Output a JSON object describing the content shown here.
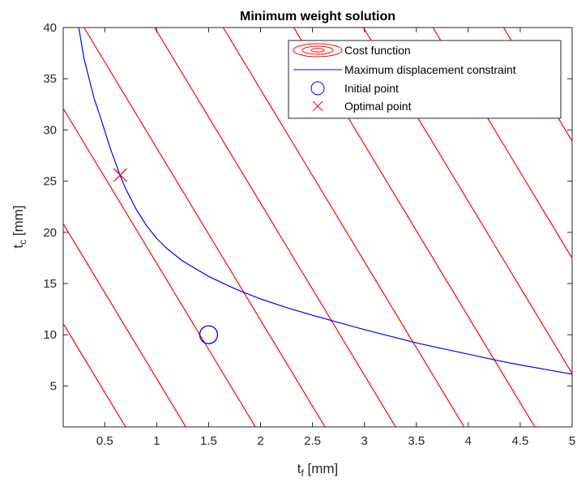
{
  "chart_data": {
    "type": "line",
    "title": "Minimum weight solution",
    "xlabel": {
      "main": "t",
      "sub": "f",
      "unit": " [mm]"
    },
    "ylabel": {
      "main": "t",
      "sub": "c",
      "unit": " [mm]"
    },
    "xlim": [
      0.1,
      5
    ],
    "ylim": [
      1,
      40
    ],
    "xticks": [
      {
        "value": 0.5,
        "label": "0.5"
      },
      {
        "value": 1,
        "label": "1"
      },
      {
        "value": 1.5,
        "label": "1.5"
      },
      {
        "value": 2,
        "label": "2"
      },
      {
        "value": 2.5,
        "label": "2.5"
      },
      {
        "value": 3,
        "label": "3"
      },
      {
        "value": 3.5,
        "label": "3.5"
      },
      {
        "value": 4,
        "label": "4"
      },
      {
        "value": 4.5,
        "label": "4.5"
      },
      {
        "value": 5,
        "label": "5"
      }
    ],
    "yticks": [
      {
        "value": 5,
        "label": "5"
      },
      {
        "value": 10,
        "label": "10"
      },
      {
        "value": 15,
        "label": "15"
      },
      {
        "value": 20,
        "label": "20"
      },
      {
        "value": 25,
        "label": "25"
      },
      {
        "value": 30,
        "label": "30"
      },
      {
        "value": 35,
        "label": "35"
      },
      {
        "value": 40,
        "label": "40"
      }
    ],
    "grid": false,
    "legend_position": "top-right",
    "cost_contours": {
      "name": "Cost function",
      "color": "#ff0000",
      "slope": -16.8,
      "lines": [
        {
          "x_at_y0": 0.76,
          "x_at_y40": -1.62
        },
        {
          "x_at_y0": 1.34,
          "x_at_y40": -1.04
        },
        {
          "x_at_y0": 2.01,
          "x_at_y40": -0.37
        },
        {
          "x_at_y0": 2.68,
          "x_at_y40": 0.3
        },
        {
          "x_at_y0": 3.36,
          "x_at_y40": 0.98
        },
        {
          "x_at_y0": 4.02,
          "x_at_y40": 1.64
        },
        {
          "x_at_y0": 4.7,
          "x_at_y40": 2.32
        },
        {
          "x_at_y0": 5.37,
          "x_at_y40": 2.99
        },
        {
          "x_at_y0": 6.04,
          "x_at_y40": 3.66
        },
        {
          "x_at_y0": 6.72,
          "x_at_y40": 4.34
        }
      ]
    },
    "constraint": {
      "name": "Maximum displacement constraint",
      "color": "#0000ff",
      "x": [
        0.25,
        0.3,
        0.35,
        0.4,
        0.45,
        0.5,
        0.55,
        0.6,
        0.65,
        0.7,
        0.8,
        0.9,
        1.0,
        1.1,
        1.25,
        1.5,
        1.75,
        2.0,
        2.25,
        2.5,
        2.75,
        3.0,
        3.25,
        3.5,
        3.75,
        4.0,
        4.25,
        4.5,
        4.75,
        5.0
      ],
      "y": [
        40.0,
        37.0,
        35.0,
        33.0,
        31.5,
        29.9,
        28.3,
        26.9,
        25.5,
        24.3,
        22.3,
        20.7,
        19.4,
        18.4,
        17.2,
        15.7,
        14.5,
        13.5,
        12.65,
        11.9,
        11.2,
        10.5,
        9.85,
        9.2,
        8.65,
        8.1,
        7.55,
        7.05,
        6.6,
        6.15
      ]
    },
    "initial_point": {
      "name": "Initial point",
      "x": 1.5,
      "y": 10,
      "color": "#0000ff"
    },
    "optimal_point": {
      "name": "Optimal point",
      "x": 0.65,
      "y": 25.6,
      "color": "#ff0000"
    }
  }
}
